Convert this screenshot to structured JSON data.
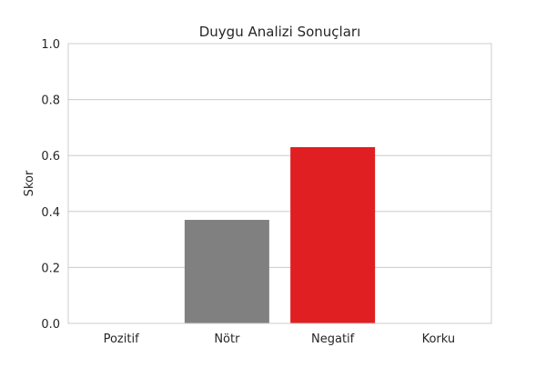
{
  "chart_data": {
    "type": "bar",
    "title": "Duygu Analizi Sonuçları",
    "xlabel": "",
    "ylabel": "Skor",
    "categories": [
      "Pozitif",
      "Nötr",
      "Negatif",
      "Korku"
    ],
    "values": [
      0.0,
      0.37,
      0.63,
      0.0
    ],
    "bar_colors": [
      "#808080",
      "#808080",
      "#e01f23",
      "#808080"
    ],
    "ylim": [
      0,
      1.0
    ],
    "yticks": [
      0.0,
      0.2,
      0.4,
      0.6,
      0.8,
      1.0
    ],
    "ytick_labels": [
      "0.0",
      "0.2",
      "0.4",
      "0.6",
      "0.8",
      "1.0"
    ],
    "grid": true,
    "grid_color": "#cccccc",
    "spine_color": "#cccccc"
  }
}
